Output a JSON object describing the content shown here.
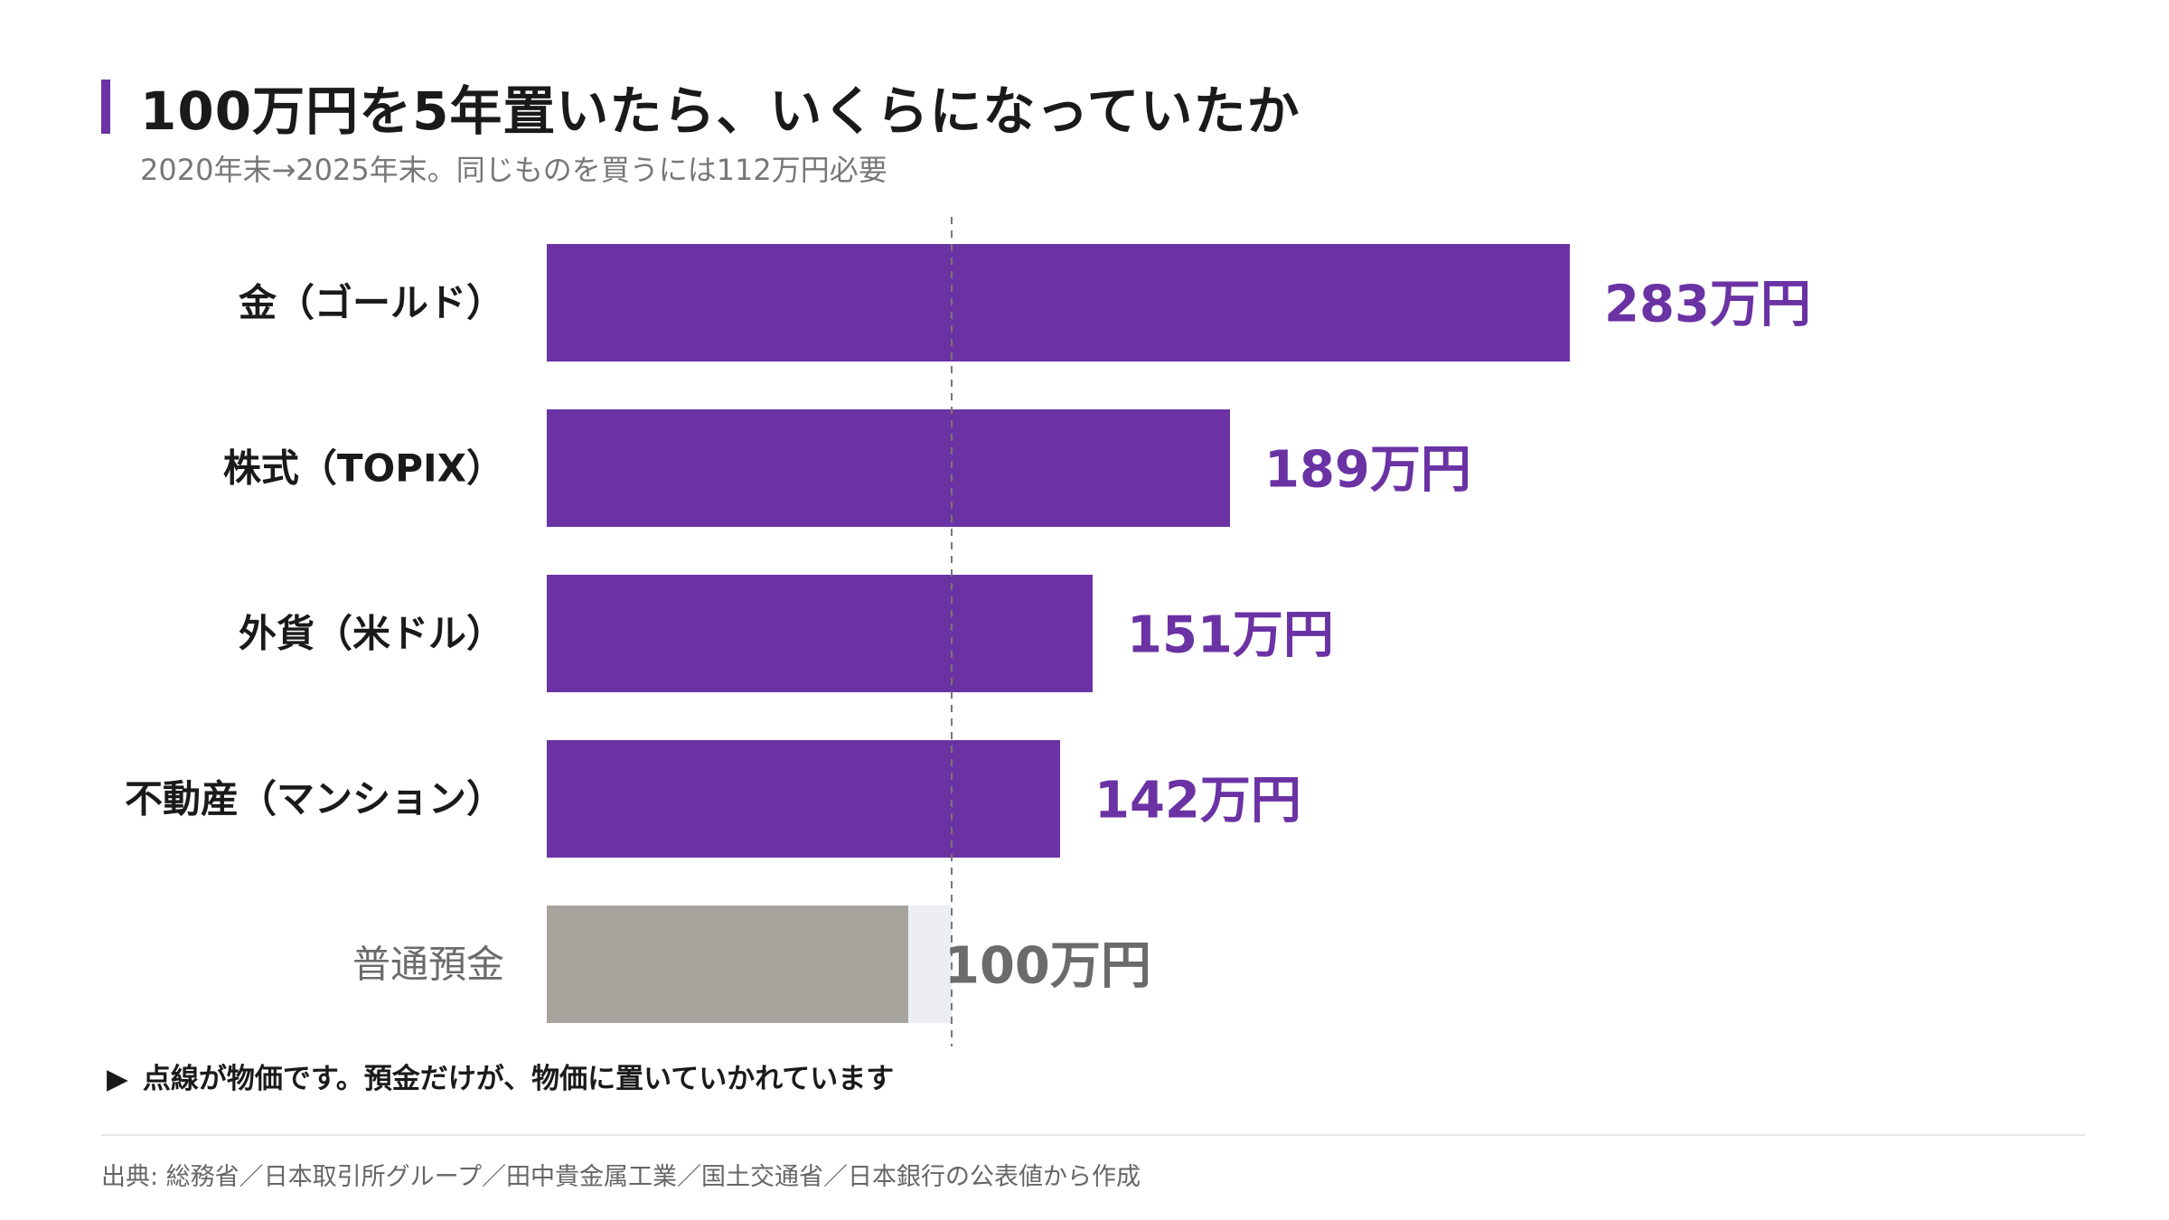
{
  "title": "100万円を5年置いたら、いくらになっていたか",
  "subtitle": "2020年末→2025年末。同じものを買うには112万円必要",
  "note": {
    "arrow": "▶",
    "text": "点線が物価です。預金だけが、物価に置いていかれています"
  },
  "source": "出典: 総務省／日本取引所グループ／田中貴金属工業／国土交通省／日本銀行の公表値から作成",
  "colors": {
    "accent": "#6b32a4",
    "deposit": "#a7a49d",
    "deposit_gap": "#eceef2",
    "deposit_label": "#6b6b6b",
    "reference_line": "#777777"
  },
  "chart_data": {
    "type": "bar",
    "orientation": "horizontal",
    "categories": [
      "金（ゴールド）",
      "株式（TOPIX）",
      "外貨（米ドル）",
      "不動産（マンション）",
      "普通預金"
    ],
    "values": [
      283,
      189,
      151,
      142,
      100
    ],
    "value_labels": [
      "283万円",
      "189万円",
      "151万円",
      "142万円",
      "100万円"
    ],
    "unit": "万円",
    "highlight": [
      true,
      true,
      true,
      true,
      false
    ],
    "reference_value": 112,
    "reference_style": "dashed",
    "xlim": [
      0,
      283
    ],
    "grid": false,
    "legend": "none"
  }
}
